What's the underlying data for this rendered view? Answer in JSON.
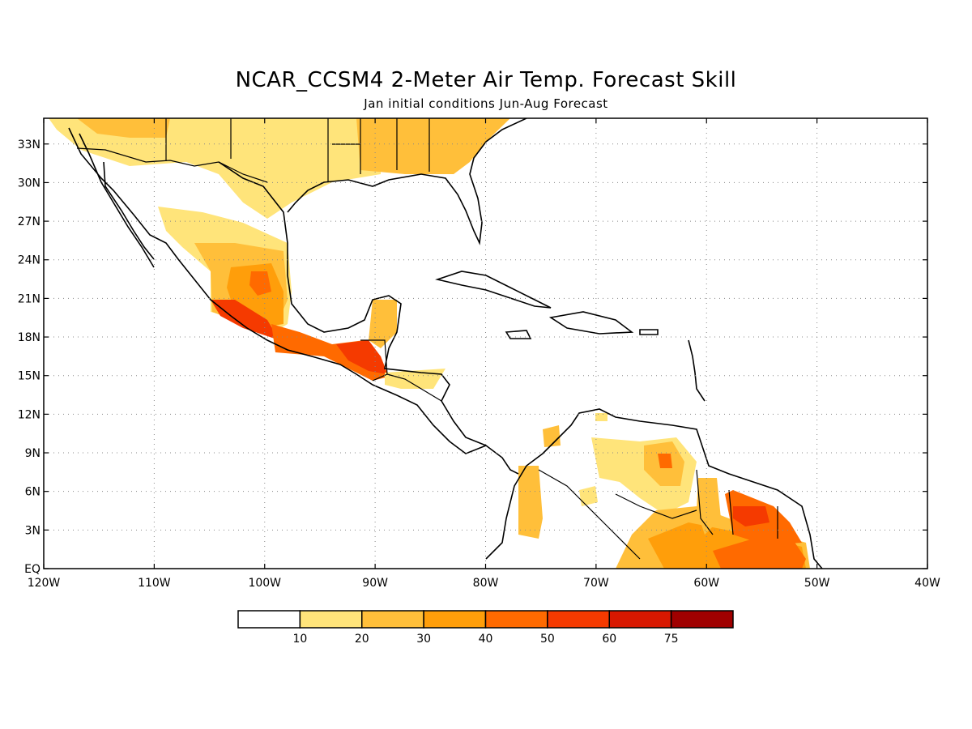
{
  "title": "NCAR_CCSM4 2-Meter Air Temp. Forecast Skill",
  "subtitle": "Jan initial conditions  Jun-Aug Forecast",
  "map": {
    "lon_range": [
      -120,
      -40
    ],
    "lat_range": [
      0,
      35
    ],
    "grid": true,
    "lat_ticks": [
      {
        "value": 33,
        "label": "33N"
      },
      {
        "value": 30,
        "label": "30N"
      },
      {
        "value": 27,
        "label": "27N"
      },
      {
        "value": 24,
        "label": "24N"
      },
      {
        "value": 21,
        "label": "21N"
      },
      {
        "value": 18,
        "label": "18N"
      },
      {
        "value": 15,
        "label": "15N"
      },
      {
        "value": 12,
        "label": "12N"
      },
      {
        "value": 9,
        "label": "9N"
      },
      {
        "value": 6,
        "label": "6N"
      },
      {
        "value": 3,
        "label": "3N"
      },
      {
        "value": 0,
        "label": "EQ"
      }
    ],
    "lon_ticks": [
      {
        "value": -120,
        "label": "120W"
      },
      {
        "value": -110,
        "label": "110W"
      },
      {
        "value": -100,
        "label": "100W"
      },
      {
        "value": -90,
        "label": "90W"
      },
      {
        "value": -80,
        "label": "80W"
      },
      {
        "value": -70,
        "label": "70W"
      },
      {
        "value": -60,
        "label": "60W"
      },
      {
        "value": -50,
        "label": "50W"
      },
      {
        "value": -40,
        "label": "40W"
      }
    ]
  },
  "legend": {
    "colors": [
      "#ffffff",
      "#ffe47a",
      "#ffbf3a",
      "#ff9e0a",
      "#ff6a00",
      "#f53a00",
      "#d81800",
      "#a00000"
    ],
    "labels": [
      "10",
      "20",
      "30",
      "40",
      "50",
      "60",
      "75"
    ]
  },
  "chart_data": {
    "type": "heatmap",
    "title": "NCAR_CCSM4 2-Meter Air Temp. Forecast Skill",
    "subtitle": "Jan initial conditions  Jun-Aug Forecast",
    "xlim": [
      -120,
      -40
    ],
    "ylim": [
      0,
      35
    ],
    "levels": [
      10,
      20,
      30,
      40,
      50,
      60,
      75
    ],
    "regions": [
      {
        "name_hint": "US Southeast",
        "level": 30
      },
      {
        "name_hint": "Northern Mexico",
        "level": 20
      },
      {
        "name_hint": "Central Mexico",
        "level": 40
      },
      {
        "name_hint": "Southwest Mexico coast",
        "level": 60
      },
      {
        "name_hint": "Southern Mexico / Guatemala",
        "level": 60
      },
      {
        "name_hint": "Honduras / Nicaragua",
        "level": 20
      },
      {
        "name_hint": "Colombia",
        "level": 30
      },
      {
        "name_hint": "Venezuela",
        "level": 40
      },
      {
        "name_hint": "Suriname / French Guiana",
        "level": 50
      },
      {
        "name_hint": "Northern Brazil",
        "level": 40
      }
    ]
  }
}
